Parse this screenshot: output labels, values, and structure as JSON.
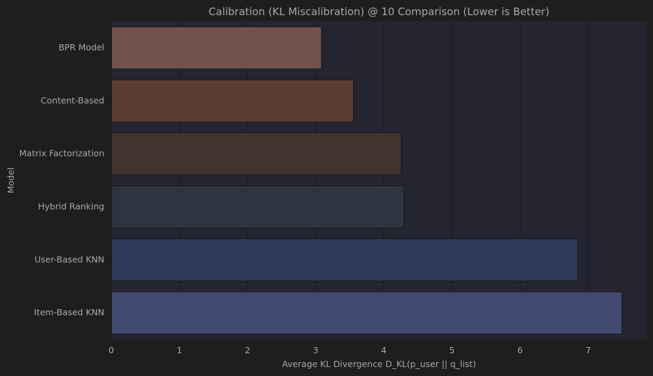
{
  "chart_data": {
    "type": "bar",
    "orientation": "horizontal",
    "title": "Calibration (KL Miscalibration) @ 10 Comparison (Lower is Better)",
    "xlabel": "Average KL Divergence D_KL(p_user || q_list)",
    "ylabel": "Model",
    "categories": [
      "BPR Model",
      "Content-Based",
      "Matrix Factorization",
      "Hybrid Ranking",
      "User-Based KNN",
      "Item-Based KNN"
    ],
    "values": [
      3.08,
      3.55,
      4.25,
      4.29,
      6.84,
      7.49
    ],
    "bar_colors": [
      "#73524d",
      "#5c3d34",
      "#42332e",
      "#2e3540",
      "#2e3a5c",
      "#434a72"
    ],
    "xlim": [
      0,
      7.86
    ],
    "xticks": [
      0,
      1,
      2,
      3,
      4,
      5,
      6,
      7
    ],
    "grid": true,
    "colors": {
      "background": "#1e1e1f",
      "plot_background": "#242530",
      "grid": "#1b1b20",
      "text": "#a8a8a8",
      "bar_edge": "#1c1c20"
    }
  }
}
